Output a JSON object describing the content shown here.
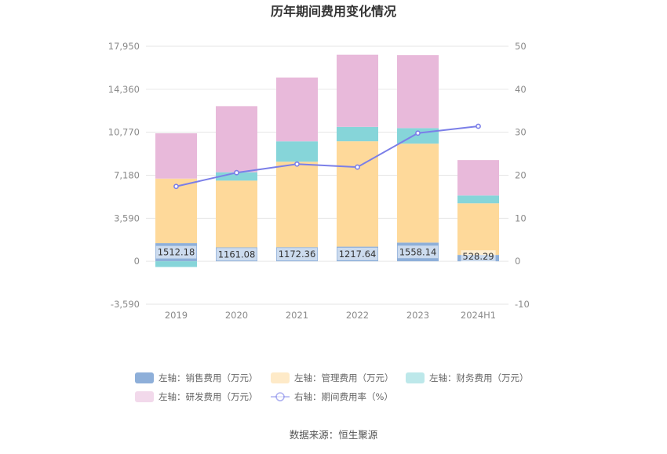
{
  "chart_data": {
    "type": "bar",
    "title": "历年期间费用变化情况",
    "categories": [
      "2019",
      "2020",
      "2021",
      "2022",
      "2023",
      "2024H1"
    ],
    "left_axis": {
      "ticks": [
        -3590,
        0,
        3590,
        7180,
        10770,
        14360,
        17950
      ],
      "tick_labels": [
        "-3,590",
        "0",
        "3,590",
        "7,180",
        "10,770",
        "14,360",
        "17,950"
      ],
      "ylim": [
        -3590,
        17950
      ]
    },
    "right_axis": {
      "ticks": [
        -10,
        0,
        10,
        20,
        30,
        40,
        50
      ],
      "tick_labels": [
        "-10",
        "0",
        "10",
        "20",
        "30",
        "40",
        "50"
      ],
      "ylim": [
        -10,
        50
      ]
    },
    "series": [
      {
        "name": "左轴：销售费用（万元）",
        "type": "bar",
        "axis": "left",
        "color": "#8eafd9",
        "values": [
          1512.18,
          1161.08,
          1172.36,
          1217.64,
          1558.14,
          528.29
        ],
        "labels": [
          "1512.18",
          "1161.08",
          "1172.36",
          "1217.64",
          "1558.14",
          "528.29"
        ]
      },
      {
        "name": "左轴：管理费用（万元）",
        "type": "bar",
        "axis": "left",
        "color": "#fed99a",
        "values": [
          5390,
          5570,
          7140,
          8800,
          8260,
          4310
        ]
      },
      {
        "name": "左轴：财务费用（万元）",
        "type": "bar",
        "axis": "left",
        "color": "#86d5d9",
        "values": [
          -480,
          700,
          1700,
          1200,
          1300,
          650
        ]
      },
      {
        "name": "左轴：研发费用（万元）",
        "type": "bar",
        "axis": "left",
        "color": "#e8b9da",
        "values": [
          3780,
          5520,
          5330,
          6030,
          6100,
          2960
        ]
      },
      {
        "name": "右轴：期间费用率（%）",
        "type": "line",
        "axis": "right",
        "color": "#7b7fe8",
        "values": [
          17.4,
          20.6,
          22.6,
          21.9,
          29.8,
          31.4
        ]
      }
    ],
    "legend_position": "bottom",
    "grid": true
  },
  "source_text": "数据来源：恒生聚源"
}
